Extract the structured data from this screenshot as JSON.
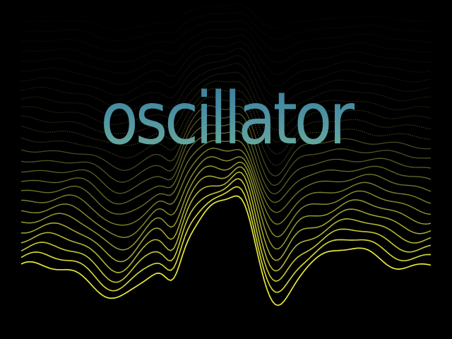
{
  "title": "oscillator",
  "colors": {
    "background": "#000000",
    "wave_far": "#1e2a2a",
    "wave_near": "#e8e83a",
    "title_top": "#3a7f9c",
    "title_bottom": "#6fae9a"
  }
}
